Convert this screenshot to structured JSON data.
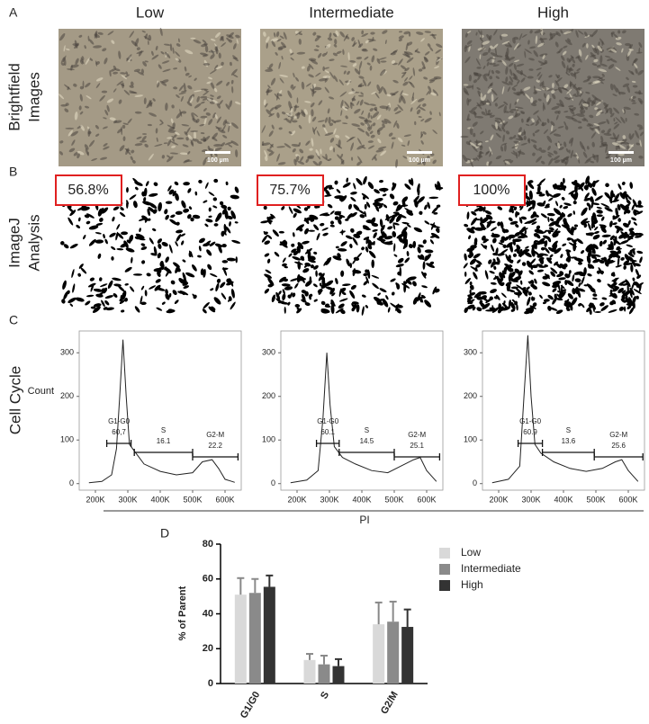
{
  "columns": [
    "Low",
    "Intermediate",
    "High"
  ],
  "panel_letters": [
    "A",
    "B",
    "C",
    "D"
  ],
  "row_labels": [
    [
      "Brightfield",
      "Images"
    ],
    [
      "ImageJ",
      "Analysis"
    ],
    [
      "Cell Cycle"
    ]
  ],
  "scale_bar": "100 µm",
  "imagej_labels": [
    "56.8%",
    "75.7%",
    "100%"
  ],
  "shared_x_label": "PI",
  "chart_data": [
    {
      "type": "line",
      "y_label": "Count",
      "x": [
        180000,
        220000,
        250000,
        265000,
        275000,
        285000,
        295000,
        305000,
        320000,
        350000,
        400000,
        450000,
        500000,
        530000,
        560000,
        580000,
        600000,
        630000
      ],
      "values": [
        2,
        5,
        20,
        80,
        200,
        330,
        200,
        90,
        75,
        45,
        28,
        20,
        25,
        50,
        55,
        35,
        10,
        3
      ],
      "color": "#222222",
      "xlim": [
        150000,
        650000
      ],
      "ylim": [
        -15,
        350
      ],
      "xticks": [
        {
          "value": 200000,
          "label": "200K"
        },
        {
          "value": 300000,
          "label": "300K"
        },
        {
          "value": 400000,
          "label": "400K"
        },
        {
          "value": 500000,
          "label": "500K"
        },
        {
          "value": 600000,
          "label": "600K"
        }
      ],
      "yticks": [
        0,
        100,
        200,
        300
      ],
      "gates": [
        {
          "name": "G1-G0",
          "label": "60,7",
          "range": [
            235000,
            310000
          ]
        },
        {
          "name": "S",
          "label": "16.1",
          "range": [
            320000,
            500000
          ]
        },
        {
          "name": "G2-M",
          "label": "22.2",
          "range": [
            500000,
            640000
          ]
        }
      ]
    },
    {
      "type": "line",
      "x": [
        180000,
        230000,
        265000,
        280000,
        292000,
        302000,
        315000,
        340000,
        380000,
        430000,
        480000,
        520000,
        560000,
        580000,
        600000,
        630000
      ],
      "values": [
        2,
        8,
        30,
        150,
        300,
        180,
        85,
        60,
        45,
        30,
        25,
        40,
        55,
        60,
        30,
        5
      ],
      "color": "#222222",
      "xlim": [
        150000,
        650000
      ],
      "ylim": [
        -15,
        350
      ],
      "xticks": [
        {
          "value": 200000,
          "label": "200K"
        },
        {
          "value": 300000,
          "label": "300K"
        },
        {
          "value": 400000,
          "label": "400K"
        },
        {
          "value": 500000,
          "label": "500K"
        },
        {
          "value": 600000,
          "label": "600K"
        }
      ],
      "yticks": [
        0,
        100,
        200,
        300
      ],
      "gates": [
        {
          "name": "G1-G0",
          "label": "60.1",
          "range": [
            260000,
            330000
          ]
        },
        {
          "name": "S",
          "label": "14.5",
          "range": [
            330000,
            500000
          ]
        },
        {
          "name": "G2-M",
          "label": "25.1",
          "range": [
            500000,
            640000
          ]
        }
      ]
    },
    {
      "type": "line",
      "x": [
        180000,
        230000,
        265000,
        278000,
        290000,
        300000,
        312000,
        330000,
        370000,
        420000,
        470000,
        520000,
        560000,
        580000,
        600000,
        630000
      ],
      "values": [
        2,
        10,
        40,
        200,
        340,
        200,
        90,
        70,
        50,
        35,
        28,
        35,
        50,
        55,
        30,
        5
      ],
      "color": "#222222",
      "xlim": [
        150000,
        650000
      ],
      "ylim": [
        -15,
        350
      ],
      "xticks": [
        {
          "value": 200000,
          "label": "200K"
        },
        {
          "value": 300000,
          "label": "300K"
        },
        {
          "value": 400000,
          "label": "400K"
        },
        {
          "value": 500000,
          "label": "500K"
        },
        {
          "value": 600000,
          "label": "600K"
        }
      ],
      "yticks": [
        0,
        100,
        200,
        300
      ],
      "gates": [
        {
          "name": "G1-G0",
          "label": "60.9",
          "range": [
            260000,
            335000
          ]
        },
        {
          "name": "S",
          "label": "13.6",
          "range": [
            335000,
            495000
          ]
        },
        {
          "name": "G2-M",
          "label": "25.6",
          "range": [
            495000,
            645000
          ]
        }
      ]
    },
    {
      "type": "bar",
      "y_label": "% of Parent",
      "categories": [
        "G1/G0",
        "S",
        "G2/M"
      ],
      "series": [
        {
          "name": "Low",
          "color": "#d9d9d9",
          "values": [
            51,
            13.5,
            34
          ],
          "errors": [
            9.5,
            3.5,
            12.5
          ]
        },
        {
          "name": "Intermediate",
          "color": "#8a8a8a",
          "values": [
            52,
            11,
            35.5
          ],
          "errors": [
            8,
            5,
            11.5
          ]
        },
        {
          "name": "High",
          "color": "#333333",
          "values": [
            55.5,
            10,
            32.5
          ],
          "errors": [
            6.5,
            4,
            10
          ]
        }
      ],
      "ylim": [
        0,
        80
      ],
      "yticks": [
        0,
        20,
        40,
        60,
        80
      ]
    }
  ]
}
